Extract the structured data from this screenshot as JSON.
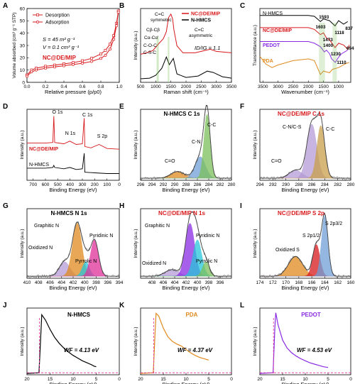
{
  "chart_data": [
    {
      "panel": "A",
      "type": "line",
      "xlabel": "Relative pressure (p/p0)",
      "ylabel": "Volume absorbed (cm³ g⁻¹ STP)",
      "xlim": [
        0,
        1.0
      ],
      "ylim": [
        0,
        60
      ],
      "xticks": [
        "0.0",
        "0.2",
        "0.4",
        "0.6",
        "0.8",
        "1.0"
      ],
      "yticks": [
        "0",
        "10",
        "20",
        "30",
        "40",
        "50",
        "60"
      ],
      "legend": [
        "Desorption",
        "Adsorption"
      ],
      "annotations": [
        "S = 45 m² g⁻¹",
        "V = 0.1 cm³ g⁻¹",
        "NC@DE/MIP"
      ],
      "series": [
        {
          "name": "Desorption",
          "x": [
            0.0,
            0.05,
            0.1,
            0.2,
            0.3,
            0.4,
            0.5,
            0.6,
            0.7,
            0.8,
            0.85,
            0.9,
            0.94,
            0.97,
            0.99
          ],
          "y": [
            6,
            10,
            11.5,
            13,
            14,
            15,
            16,
            17.5,
            19.5,
            23,
            26,
            31,
            38,
            48,
            58
          ]
        },
        {
          "name": "Adsorption",
          "x": [
            0.0,
            0.05,
            0.1,
            0.2,
            0.3,
            0.4,
            0.5,
            0.6,
            0.7,
            0.8,
            0.85,
            0.9,
            0.94,
            0.97,
            0.99
          ],
          "y": [
            5,
            8.5,
            10,
            11.5,
            12.5,
            13.5,
            14.5,
            15.5,
            17,
            19.5,
            22,
            27,
            35,
            46,
            57
          ]
        }
      ]
    },
    {
      "panel": "B",
      "type": "line",
      "xlabel": "Raman shift (cm⁻¹)",
      "ylabel": "Intensity (a.u.)",
      "xlim": [
        500,
        3500
      ],
      "xticks": [
        "500",
        "1000",
        "1500",
        "2000",
        "2500",
        "3000",
        "3500"
      ],
      "legend": [
        "NC@DE/MIP",
        "N-HMCS"
      ],
      "annotations": [
        "C=C symmetric",
        "Cβ-Cβ",
        "Cα-Cα'",
        "C-O-C",
        "C-S-C",
        "C=C asymmetric",
        "ID/IG = 1.1"
      ],
      "series": [
        {
          "name": "NC@DE/MIP",
          "x": [
            500,
            700,
            900,
            1000,
            1100,
            1250,
            1350,
            1420,
            1500,
            1560,
            1600,
            1700,
            1900,
            2300,
            2600,
            2800,
            3000,
            3500
          ],
          "y": [
            0.4,
            0.42,
            0.45,
            0.5,
            0.55,
            0.62,
            0.72,
            0.92,
            0.97,
            0.9,
            0.75,
            0.52,
            0.42,
            0.42,
            0.45,
            0.47,
            0.44,
            0.42
          ]
        },
        {
          "name": "N-HMCS",
          "x": [
            500,
            800,
            1000,
            1200,
            1350,
            1450,
            1580,
            1700,
            2000,
            2400,
            2700,
            2900,
            3200,
            3500
          ],
          "y": [
            0.05,
            0.06,
            0.1,
            0.2,
            0.36,
            0.25,
            0.34,
            0.12,
            0.07,
            0.09,
            0.16,
            0.14,
            0.08,
            0.06
          ]
        }
      ]
    },
    {
      "panel": "C",
      "type": "line",
      "xlabel": "Wavenumber (cm⁻¹)",
      "ylabel": "Transmittance (a.u.)",
      "xlim": [
        3600,
        600
      ],
      "xticks": [
        "3500",
        "3000",
        "2500",
        "2000",
        "1500",
        "1000"
      ],
      "legend": [
        "N-HMCS",
        "NC@DE/MIP",
        "PEDOT",
        "PDA"
      ],
      "annotations": [
        "1593",
        "1603",
        "1118",
        "837",
        "694",
        "1473",
        "1400",
        "1230",
        "1110"
      ],
      "series": [
        {
          "name": "N-HMCS",
          "x": [
            3600,
            3000,
            2000,
            1800,
            1600,
            1500,
            1300,
            1118,
            1000,
            837,
            700
          ],
          "y": [
            0.92,
            0.92,
            0.92,
            0.91,
            0.85,
            0.88,
            0.86,
            0.8,
            0.86,
            0.82,
            0.85
          ]
        },
        {
          "name": "NC@DE/MIP",
          "x": [
            3600,
            3000,
            2000,
            1800,
            1603,
            1500,
            1400,
            1300,
            1118,
            1000,
            837,
            694,
            650
          ],
          "y": [
            0.78,
            0.78,
            0.78,
            0.76,
            0.7,
            0.72,
            0.66,
            0.64,
            0.55,
            0.6,
            0.58,
            0.53,
            0.58
          ]
        },
        {
          "name": "PEDOT",
          "x": [
            3600,
            3000,
            2000,
            1800,
            1600,
            1473,
            1400,
            1300,
            1230,
            1110,
            1000,
            900,
            700
          ],
          "y": [
            0.62,
            0.62,
            0.62,
            0.6,
            0.56,
            0.5,
            0.52,
            0.48,
            0.42,
            0.38,
            0.44,
            0.48,
            0.52
          ]
        },
        {
          "name": "PDA",
          "x": [
            3600,
            3400,
            3200,
            3000,
            2500,
            2000,
            1800,
            1600,
            1500,
            1300,
            1200,
            1000,
            800,
            650
          ],
          "y": [
            0.45,
            0.36,
            0.32,
            0.35,
            0.4,
            0.42,
            0.4,
            0.24,
            0.28,
            0.26,
            0.3,
            0.32,
            0.36,
            0.38
          ]
        }
      ]
    },
    {
      "panel": "D",
      "type": "line",
      "xlabel": "Binding Energy (eV)",
      "ylabel": "Intensity (a.u.)",
      "xlim": [
        750,
        0
      ],
      "xticks": [
        "700",
        "600",
        "500",
        "400",
        "300",
        "200",
        "100",
        "0"
      ],
      "legend": [
        "NC@DE/MIP",
        "N-HMCS"
      ],
      "annotations": [
        "O 1s",
        "C 1s",
        "N 1s",
        "S 2p"
      ],
      "series": [
        {
          "name": "NC@DE/MIP",
          "x": [
            750,
            600,
            540,
            532,
            525,
            450,
            402,
            350,
            300,
            285,
            280,
            230,
            164,
            100,
            0
          ],
          "y": [
            0.55,
            0.55,
            0.56,
            0.95,
            0.56,
            0.54,
            0.58,
            0.53,
            0.54,
            0.92,
            0.5,
            0.48,
            0.53,
            0.47,
            0.46
          ]
        },
        {
          "name": "N-HMCS",
          "x": [
            750,
            600,
            540,
            532,
            525,
            450,
            402,
            350,
            300,
            285,
            280,
            200,
            100,
            0
          ],
          "y": [
            0.18,
            0.18,
            0.19,
            0.22,
            0.19,
            0.17,
            0.19,
            0.16,
            0.17,
            0.4,
            0.12,
            0.11,
            0.1,
            0.1
          ]
        }
      ]
    },
    {
      "panel": "E",
      "type": "area",
      "title": "N-HMCS C 1s",
      "xlabel": "Binding Energy (eV)",
      "ylabel": "Intensity (a.u.)",
      "xlim": [
        296,
        280
      ],
      "xticks": [
        "296",
        "294",
        "292",
        "290",
        "288",
        "286",
        "284",
        "282",
        "280"
      ],
      "peaks": [
        {
          "name": "C=O",
          "center": 289.5,
          "height": 0.1
        },
        {
          "name": "C-N",
          "center": 285.5,
          "height": 0.32
        },
        {
          "name": "C-C",
          "center": 284.3,
          "height": 0.95
        }
      ]
    },
    {
      "panel": "F",
      "type": "area",
      "title": "NC@DE/MIP C 1s",
      "xlabel": "Binding Energy (eV)",
      "ylabel": "Intensity (a.u.)",
      "xlim": [
        294,
        280
      ],
      "xticks": [
        "294",
        "292",
        "290",
        "288",
        "286",
        "284",
        "282",
        "280"
      ],
      "peaks": [
        {
          "name": "C=O",
          "center": 288.5,
          "height": 0.12
        },
        {
          "name": "C-N/C-S",
          "center": 286.0,
          "height": 0.8
        },
        {
          "name": "C-C",
          "center": 284.6,
          "height": 0.78
        }
      ]
    },
    {
      "panel": "G",
      "type": "area",
      "title": "N-HMCS N 1s",
      "xlabel": "Binding Energy (eV)",
      "ylabel": "Intensity (a.u.)",
      "xlim": [
        410,
        394
      ],
      "xticks": [
        "410",
        "408",
        "406",
        "404",
        "402",
        "400",
        "398",
        "396",
        "394"
      ],
      "peaks": [
        {
          "name": "Oxidized N",
          "center": 403.5,
          "height": 0.22
        },
        {
          "name": "Graphitic N",
          "center": 401.3,
          "height": 0.8
        },
        {
          "name": "Pyrrolic N",
          "center": 399.8,
          "height": 0.22
        },
        {
          "name": "Pyridinic N",
          "center": 398.3,
          "height": 0.55
        }
      ]
    },
    {
      "panel": "H",
      "type": "area",
      "title": "NC@DE/MIP N 1s",
      "xlabel": "Binding Energy (eV)",
      "ylabel": "Intensity (a.u.)",
      "xlim": [
        410,
        394
      ],
      "xticks": [
        "408",
        "406",
        "404",
        "402",
        "400",
        "398",
        "396"
      ],
      "peaks": [
        {
          "name": "Oxidized N",
          "center": 404.5,
          "height": 0.1
        },
        {
          "name": "Graphitic N",
          "center": 401.3,
          "height": 0.8
        },
        {
          "name": "Pyrrolic N",
          "center": 400.0,
          "height": 0.55
        },
        {
          "name": "Pyridinic N",
          "center": 398.5,
          "height": 0.22
        }
      ]
    },
    {
      "panel": "I",
      "type": "area",
      "title": "NC@DE/MIP S 2p",
      "xlabel": "Binding Energy (eV)",
      "ylabel": "Intensity (a.u.)",
      "xlim": [
        174,
        160
      ],
      "xticks": [
        "174",
        "172",
        "170",
        "168",
        "166",
        "164",
        "162",
        "160"
      ],
      "peaks": [
        {
          "name": "Oxidized S",
          "center": 168.5,
          "height": 0.3
        },
        {
          "name": "S 2p1/2",
          "center": 165.3,
          "height": 0.48
        },
        {
          "name": "S 2p3/2",
          "center": 164.0,
          "height": 0.92
        }
      ]
    },
    {
      "panel": "J",
      "type": "line",
      "title": "N-HMCS",
      "xlabel": "Binding Energy (eV)",
      "ylabel": "Intensity (a.u.)",
      "xlim": [
        20,
        0
      ],
      "xticks": [
        "20",
        "15",
        "10",
        "5",
        "0"
      ],
      "annotations": [
        "WF = 4.13 eV"
      ],
      "work_function_eV": 4.13,
      "series": [
        {
          "x": [
            20,
            17.4,
            17.0,
            16.8,
            16.0,
            15.0,
            14.0,
            13.0,
            12.0,
            11.0,
            10.0,
            9.0,
            8.0,
            7.0,
            6.0,
            5.5,
            5.0
          ],
          "y": [
            0.02,
            0.03,
            0.6,
            0.9,
            0.82,
            0.68,
            0.56,
            0.47,
            0.4,
            0.34,
            0.29,
            0.25,
            0.21,
            0.18,
            0.15,
            0.13,
            0.12
          ]
        }
      ]
    },
    {
      "panel": "K",
      "type": "line",
      "title": "PDA",
      "xlabel": "Binding Energy (eV)",
      "ylabel": "Intensity (a.u.)",
      "xlim": [
        20,
        0
      ],
      "xticks": [
        "20",
        "15",
        "10",
        "5",
        "0"
      ],
      "annotations": [
        "WF = 4.37 eV"
      ],
      "work_function_eV": 4.37,
      "series": [
        {
          "x": [
            20,
            17.2,
            16.8,
            16.6,
            16.0,
            15.0,
            14.0,
            13.0,
            12.0,
            11.0,
            10.0,
            9.0,
            8.0,
            7.0,
            6.0,
            5.0
          ],
          "y": [
            0.02,
            0.03,
            0.65,
            0.92,
            0.88,
            0.7,
            0.57,
            0.5,
            0.46,
            0.43,
            0.38,
            0.33,
            0.29,
            0.26,
            0.24,
            0.22
          ]
        }
      ]
    },
    {
      "panel": "L",
      "type": "line",
      "title": "PEDOT",
      "xlabel": "Binding Energy (eV)",
      "ylabel": "Intensity (a.u.)",
      "xlim": [
        20,
        0
      ],
      "xticks": [
        "20",
        "15",
        "10",
        "5",
        "0"
      ],
      "annotations": [
        "WF = 4.53 eV"
      ],
      "work_function_eV": 4.53,
      "series": [
        {
          "x": [
            20,
            17.1,
            16.7,
            16.5,
            16.0,
            15.0,
            14.0,
            13.0,
            12.0,
            11.0,
            10.0,
            9.0,
            8.0,
            7.0,
            6.0,
            5.0
          ],
          "y": [
            0.02,
            0.03,
            0.7,
            0.93,
            0.75,
            0.52,
            0.4,
            0.33,
            0.28,
            0.24,
            0.21,
            0.18,
            0.16,
            0.14,
            0.12,
            0.11
          ]
        }
      ]
    }
  ],
  "colors": {
    "red": "#d7191c",
    "black": "#000000",
    "purple": "#8a2be2",
    "orange": "#e08a1e",
    "green": "#7cc05a",
    "blue": "#6f9fd8",
    "cyan": "#26c6da",
    "lilac": "#b59bd6",
    "tan": "#c9a04a",
    "magenta": "#e0319a"
  }
}
